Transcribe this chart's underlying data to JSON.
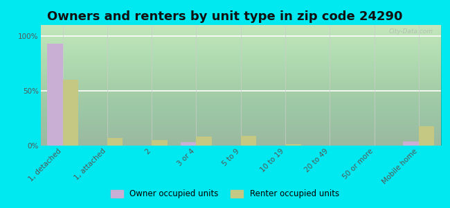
{
  "title": "Owners and renters by unit type in zip code 24290",
  "categories": [
    "1, detached",
    "1, attached",
    "2",
    "3 or 4",
    "5 to 9",
    "10 to 19",
    "20 to 49",
    "50 or more",
    "Mobile home"
  ],
  "owner_values": [
    93,
    0,
    0,
    3,
    0,
    0,
    0,
    0,
    4
  ],
  "renter_values": [
    60,
    7,
    5,
    8,
    9,
    1,
    0,
    0,
    18
  ],
  "owner_color": "#c9afd4",
  "renter_color": "#c5c882",
  "outer_bg": "#00e8f0",
  "chart_bg_top": "#f0f8e0",
  "chart_bg_bottom": "#e0f0c8",
  "yticks": [
    0,
    50,
    100
  ],
  "ytick_labels": [
    "0%",
    "50%",
    "100%"
  ],
  "ylim": [
    0,
    110
  ],
  "bar_width": 0.35,
  "legend_owner": "Owner occupied units",
  "legend_renter": "Renter occupied units",
  "title_fontsize": 13,
  "tick_fontsize": 7.5
}
